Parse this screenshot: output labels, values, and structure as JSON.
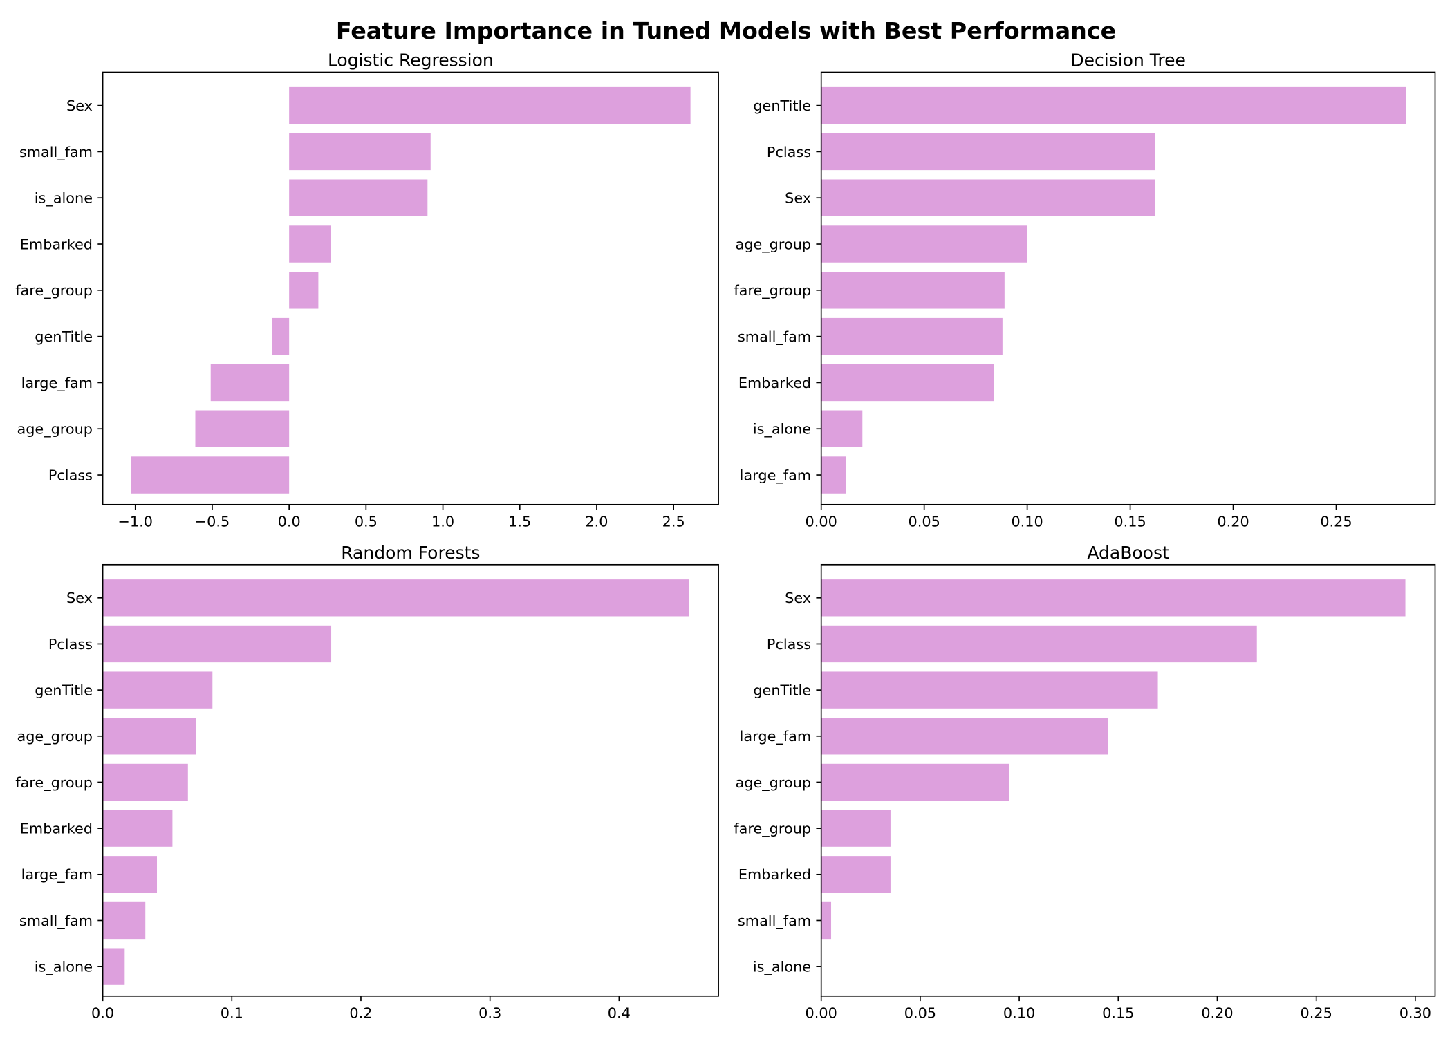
{
  "figure": {
    "title": "Feature Importance in Tuned Models with Best Performance",
    "bar_color": "#DDA0DD"
  },
  "chart_data": [
    {
      "type": "bar",
      "orientation": "horizontal",
      "title": "Logistic Regression",
      "categories": [
        "Sex",
        "small_fam",
        "is_alone",
        "Embarked",
        "fare_group",
        "genTitle",
        "large_fam",
        "age_group",
        "Pclass"
      ],
      "values": [
        2.61,
        0.92,
        0.9,
        0.27,
        0.19,
        -0.11,
        -0.51,
        -0.61,
        -1.03
      ],
      "xlim": [
        -1.212,
        2.792
      ],
      "xticks": [
        -1.0,
        -0.5,
        0.0,
        0.5,
        1.0,
        1.5,
        2.0,
        2.5
      ],
      "xtick_labels": [
        "−1.0",
        "−0.5",
        "0.0",
        "0.5",
        "1.0",
        "1.5",
        "2.0",
        "2.5"
      ],
      "grid": false
    },
    {
      "type": "bar",
      "orientation": "horizontal",
      "title": "Decision Tree",
      "categories": [
        "genTitle",
        "Pclass",
        "Sex",
        "age_group",
        "fare_group",
        "small_fam",
        "Embarked",
        "is_alone",
        "large_fam"
      ],
      "values": [
        0.284,
        0.162,
        0.162,
        0.1,
        0.089,
        0.088,
        0.084,
        0.02,
        0.012
      ],
      "xlim": [
        0,
        0.298
      ],
      "xticks": [
        0.0,
        0.05,
        0.1,
        0.15,
        0.2,
        0.25
      ],
      "xtick_labels": [
        "0.00",
        "0.05",
        "0.10",
        "0.15",
        "0.20",
        "0.25"
      ],
      "grid": false
    },
    {
      "type": "bar",
      "orientation": "horizontal",
      "title": "Random Forests",
      "categories": [
        "Sex",
        "Pclass",
        "genTitle",
        "age_group",
        "fare_group",
        "Embarked",
        "large_fam",
        "small_fam",
        "is_alone"
      ],
      "values": [
        0.454,
        0.177,
        0.085,
        0.072,
        0.066,
        0.054,
        0.042,
        0.033,
        0.017
      ],
      "xlim": [
        0,
        0.477
      ],
      "xticks": [
        0.0,
        0.1,
        0.2,
        0.3,
        0.4
      ],
      "xtick_labels": [
        "0.0",
        "0.1",
        "0.2",
        "0.3",
        "0.4"
      ],
      "grid": false
    },
    {
      "type": "bar",
      "orientation": "horizontal",
      "title": "AdaBoost",
      "categories": [
        "Sex",
        "Pclass",
        "genTitle",
        "large_fam",
        "age_group",
        "fare_group",
        "Embarked",
        "small_fam",
        "is_alone"
      ],
      "values": [
        0.295,
        0.22,
        0.17,
        0.145,
        0.095,
        0.035,
        0.035,
        0.005,
        0.0
      ],
      "xlim": [
        0,
        0.31
      ],
      "xticks": [
        0.0,
        0.05,
        0.1,
        0.15,
        0.2,
        0.25,
        0.3
      ],
      "xtick_labels": [
        "0.00",
        "0.05",
        "0.10",
        "0.15",
        "0.20",
        "0.25",
        "0.30"
      ],
      "grid": false
    }
  ]
}
